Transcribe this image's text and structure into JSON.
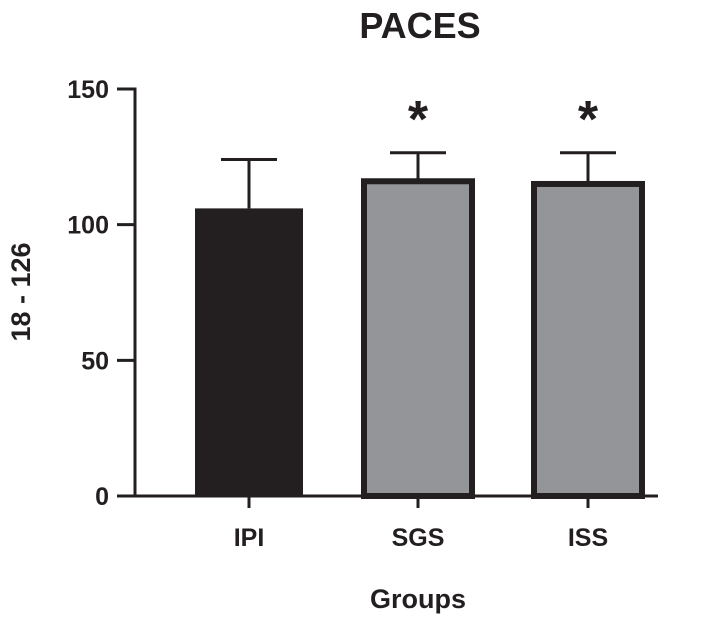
{
  "chart_data": {
    "type": "bar",
    "title": "PACES",
    "xlabel": "Groups",
    "ylabel": "18 - 126",
    "categories": [
      "IPI",
      "SGS",
      "ISS"
    ],
    "values": [
      106,
      116,
      115
    ],
    "error_upper": [
      124,
      126.5,
      126.5
    ],
    "significance": [
      "",
      "*",
      "*"
    ],
    "bar_fill": [
      "#231f20",
      "#949598",
      "#949598"
    ],
    "bar_stroke": "#231f20",
    "ylim": [
      0,
      150
    ],
    "yticks": [
      0,
      50,
      100,
      150
    ],
    "ytick_labels": [
      "0",
      "50",
      "100",
      "150"
    ],
    "grid": false,
    "legend": "none"
  }
}
